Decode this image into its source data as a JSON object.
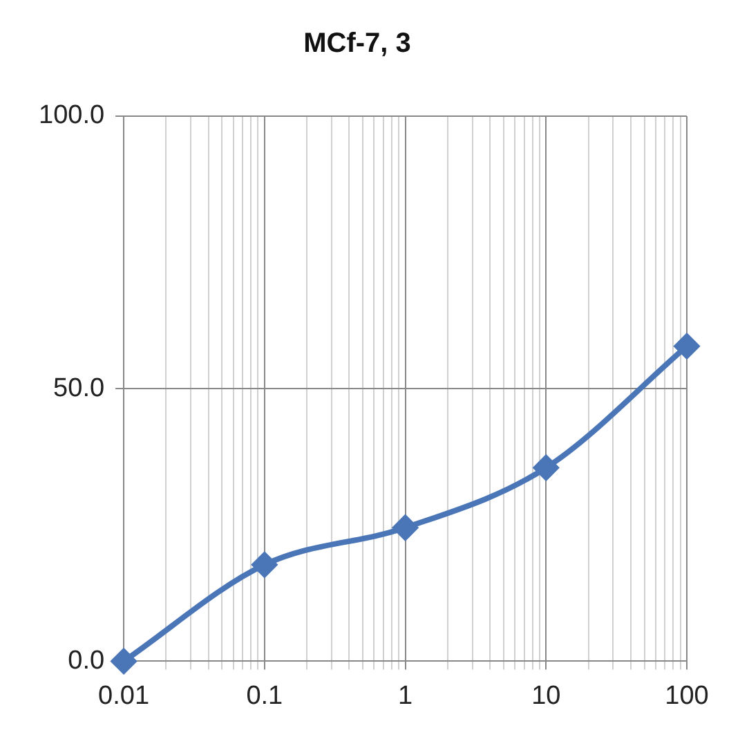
{
  "chart_data": {
    "type": "line",
    "title": "MCf-7, 3",
    "x": [
      0.01,
      0.1,
      1,
      10,
      100
    ],
    "series": [
      {
        "color": "#4a76b8",
        "values": [
          0,
          17.7,
          24.5,
          35.5,
          57.8
        ]
      }
    ],
    "log": "x",
    "xlim": [
      0.01,
      100
    ],
    "xticks": [
      0.01,
      {
        "value": 0.02,
        "label": null
      },
      {
        "value": 0.03,
        "label": null
      },
      {
        "value": 0.04,
        "label": null
      },
      {
        "value": 0.05,
        "label": null
      },
      {
        "value": 0.06,
        "label": null
      },
      {
        "value": 0.07,
        "label": null
      },
      {
        "value": 0.08,
        "label": null
      },
      {
        "value": 0.09,
        "label": null
      },
      0.1,
      {
        "value": 0.2,
        "label": null
      },
      {
        "value": 0.3,
        "label": null
      },
      {
        "value": 0.4,
        "label": null
      },
      {
        "value": 0.5,
        "label": null
      },
      {
        "value": 0.6,
        "label": null
      },
      {
        "value": 0.7,
        "label": null
      },
      {
        "value": 0.8,
        "label": null
      },
      {
        "value": 0.9,
        "label": null
      },
      1,
      {
        "value": 2,
        "label": null
      },
      {
        "value": 3,
        "label": null
      },
      {
        "value": 4,
        "label": null
      },
      {
        "value": 5,
        "label": null
      },
      {
        "value": 6,
        "label": null
      },
      {
        "value": 7,
        "label": null
      },
      {
        "value": 8,
        "label": null
      },
      {
        "value": 9,
        "label": null
      },
      10,
      {
        "value": 20,
        "label": null
      },
      {
        "value": 30,
        "label": null
      },
      {
        "value": 40,
        "label": null
      },
      {
        "value": 50,
        "label": null
      },
      {
        "value": 60,
        "label": null
      },
      {
        "value": 70,
        "label": null
      },
      {
        "value": 80,
        "label": null
      },
      {
        "value": 90,
        "label": null
      },
      100
    ],
    "ylim": [
      0,
      100
    ],
    "yticks": [
      {
        "value": 0,
        "label": "0.0"
      },
      {
        "value": 50,
        "label": "50.0"
      },
      {
        "value": 100,
        "label": "100.0"
      }
    ],
    "grid": true,
    "legend": false,
    "marker": "diamond",
    "line_style": "solid"
  }
}
